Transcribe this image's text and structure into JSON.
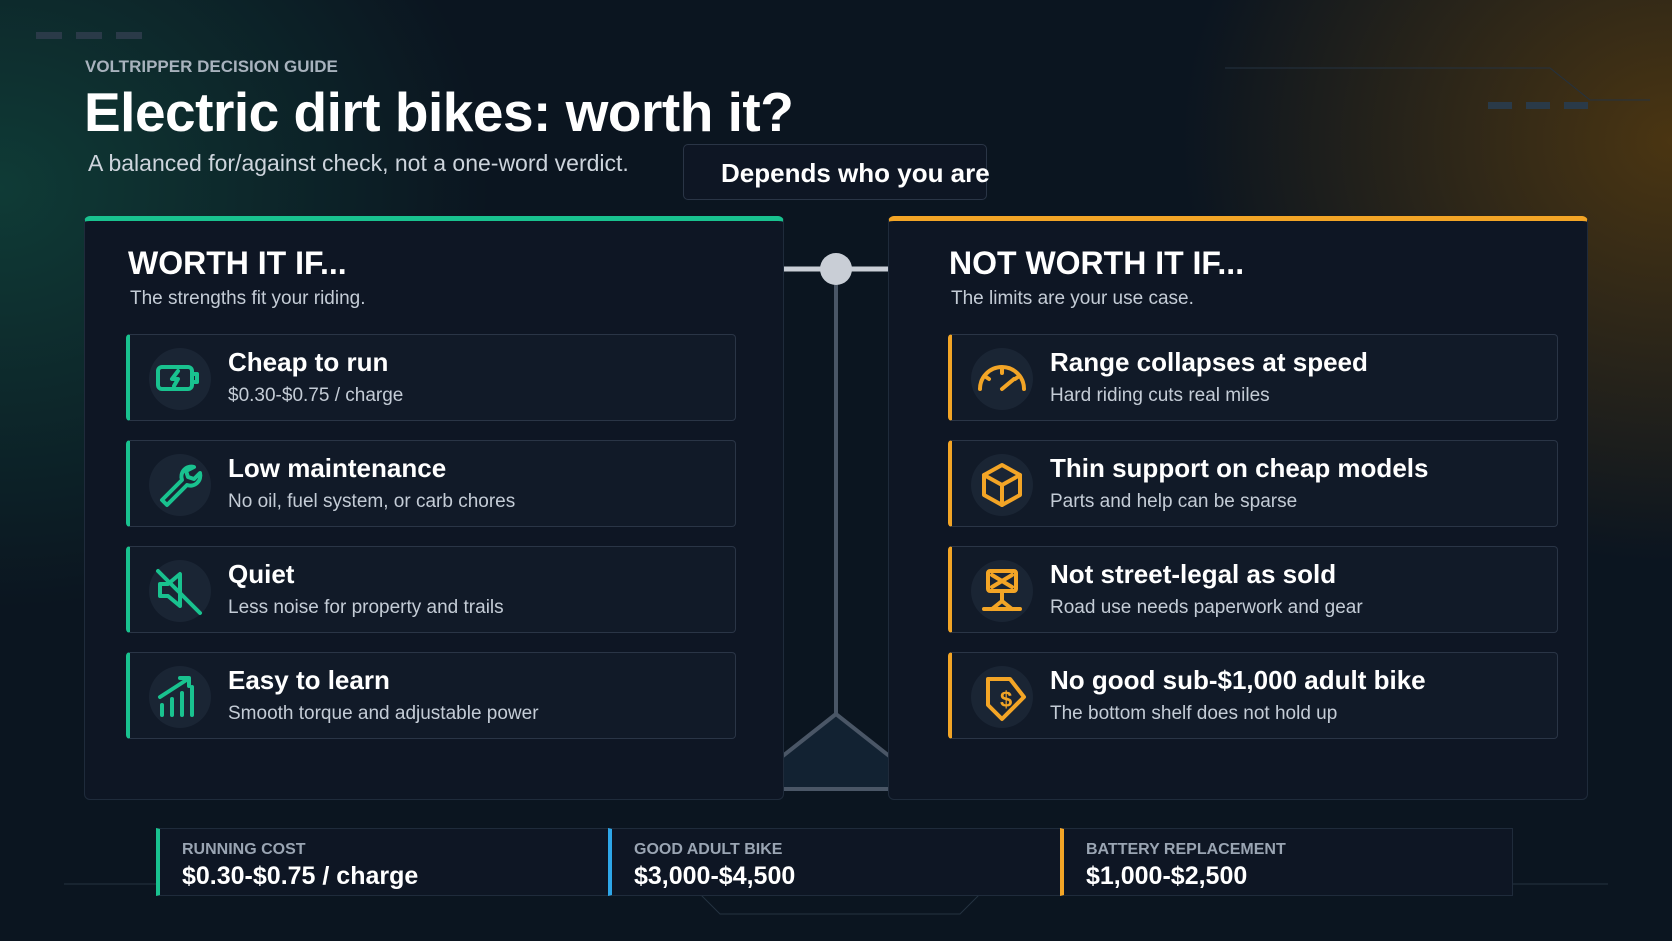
{
  "header": {
    "eyebrow": "VOLTRIPPER DECISION GUIDE",
    "title": "Electric dirt bikes: worth it?",
    "subtitle": "A balanced for/against check, not a one-word verdict.",
    "verdict": "Depends who you are"
  },
  "for_panel": {
    "heading": "WORTH IT IF...",
    "subheading": "The strengths fit your riding.",
    "items": [
      {
        "title": "Cheap to run",
        "detail": "$0.30-$0.75 / charge"
      },
      {
        "title": "Low maintenance",
        "detail": "No oil, fuel system, or carb chores"
      },
      {
        "title": "Quiet",
        "detail": "Less noise for property and trails"
      },
      {
        "title": "Easy to learn",
        "detail": "Smooth torque and adjustable power"
      }
    ]
  },
  "against_panel": {
    "heading": "NOT WORTH IT IF...",
    "subheading": "The limits are your use case.",
    "items": [
      {
        "title": "Range collapses at speed",
        "detail": "Hard riding cuts real miles"
      },
      {
        "title": "Thin support on cheap models",
        "detail": "Parts and help can be sparse"
      },
      {
        "title": "Not street-legal as sold",
        "detail": "Road use needs paperwork and gear"
      },
      {
        "title": "No good sub-$1,000 adult bike",
        "detail": "The bottom shelf does not hold up"
      }
    ]
  },
  "stats": [
    {
      "label": "RUNNING COST",
      "value": "$0.30-$0.75 / charge"
    },
    {
      "label": "GOOD ADULT BIKE",
      "value": "$3,000-$4,500"
    },
    {
      "label": "BATTERY REPLACEMENT",
      "value": "$1,000-$2,500"
    }
  ]
}
